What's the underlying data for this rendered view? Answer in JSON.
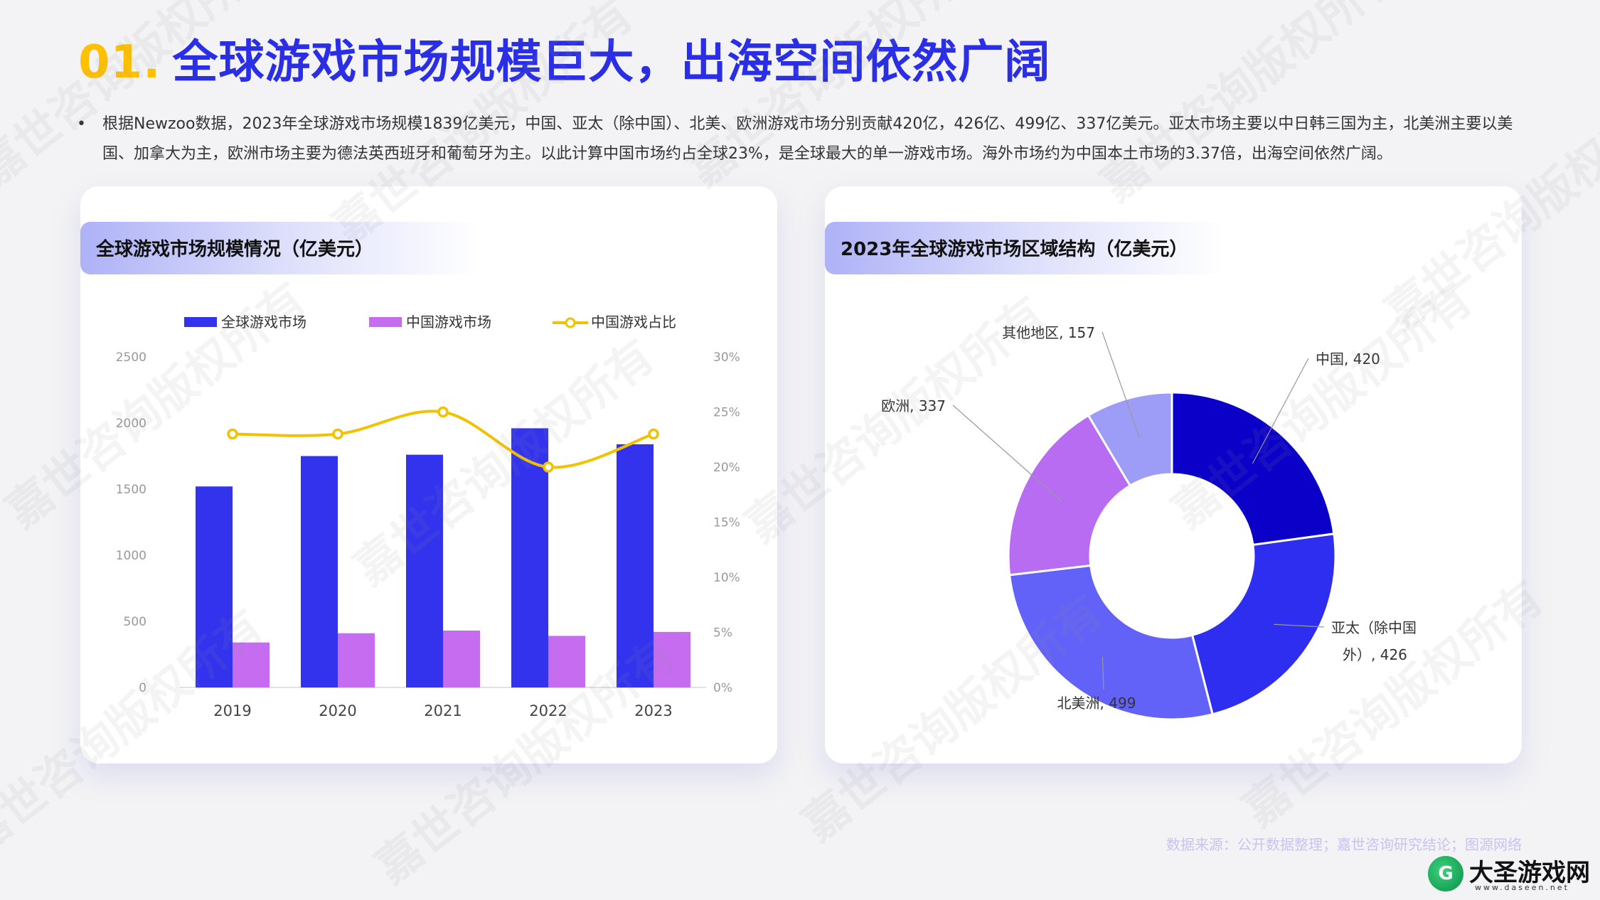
{
  "header": {
    "number": "01.",
    "title": "全球游戏市场规模巨大，出海空间依然广阔"
  },
  "summary": "根据Newzoo数据，2023年全球游戏市场规模1839亿美元，中国、亚太（除中国）、北美、欧洲游戏市场分别贡献420亿，426亿、499亿、337亿美元。亚太市场主要以中日韩三国为主，北美洲主要以美国、加拿大为主，欧洲市场主要为德法英西班牙和葡萄牙为主。以此计算中国市场约占全球23%，是全球最大的单一游戏市场。海外市场约为中国本土市场的3.37倍，出海空间依然广阔。",
  "left_panel": {
    "title": "全球游戏市场规模情况（亿美元）"
  },
  "right_panel": {
    "title": "2023年全球游戏市场区域结构（亿美元）"
  },
  "source": "数据来源：公开数据整理；嘉世咨询研究结论；图源网络",
  "watermark": "嘉世咨询版权所有",
  "site_logo": {
    "mark": "G",
    "name": "大圣游戏网",
    "url": "www.daseen.net"
  },
  "colors": {
    "global": "#3333ee",
    "china": "#c56cf0",
    "ratio": "#f2c200",
    "title_number": "#ffc000",
    "title_text": "#2a2fe6"
  },
  "chart_data": [
    {
      "type": "bar",
      "title": "全球游戏市场规模情况（亿美元）",
      "categories": [
        "2019",
        "2020",
        "2021",
        "2022",
        "2023"
      ],
      "series": [
        {
          "name": "全球游戏市场",
          "type": "bar",
          "axis": "left",
          "values": [
            1520,
            1750,
            1760,
            1960,
            1839
          ]
        },
        {
          "name": "中国游戏市场",
          "type": "bar",
          "axis": "left",
          "values": [
            340,
            410,
            430,
            390,
            420
          ]
        },
        {
          "name": "中国游戏占比",
          "type": "line",
          "axis": "right",
          "values": [
            0.23,
            0.23,
            0.25,
            0.2,
            0.23
          ]
        }
      ],
      "y_left": {
        "min": 0,
        "max": 2500,
        "ticks": [
          "2500",
          "2000",
          "1500",
          "1000",
          "500",
          "0"
        ],
        "tick_values": [
          2500,
          2000,
          1500,
          1000,
          500,
          0
        ]
      },
      "y_right": {
        "min": 0,
        "max": 0.3,
        "ticks": [
          "30%",
          "25%",
          "20%",
          "15%",
          "10%",
          "5%",
          "0%"
        ],
        "tick_values": [
          0.3,
          0.25,
          0.2,
          0.15,
          0.1,
          0.05,
          0
        ]
      },
      "legend_position": "top",
      "grid": false
    },
    {
      "type": "pie",
      "title": "2023年全球游戏市场区域结构（亿美元）",
      "donut": true,
      "slices": [
        {
          "label": "中国",
          "value": 420,
          "color": "#0b00c8",
          "display": "中国, 420"
        },
        {
          "label": "亚太（除中国外）",
          "value": 426,
          "color": "#2e2ef0",
          "display_line1": "亚太（除中国",
          "display_line2": "外）, 426"
        },
        {
          "label": "北美洲",
          "value": 499,
          "color": "#6262f8",
          "display": "北美洲, 499"
        },
        {
          "label": "欧洲",
          "value": 337,
          "color": "#b86cf2",
          "display": "欧洲, 337"
        },
        {
          "label": "其他地区",
          "value": 157,
          "color": "#9d9cf7",
          "display": "其他地区, 157"
        }
      ]
    }
  ]
}
